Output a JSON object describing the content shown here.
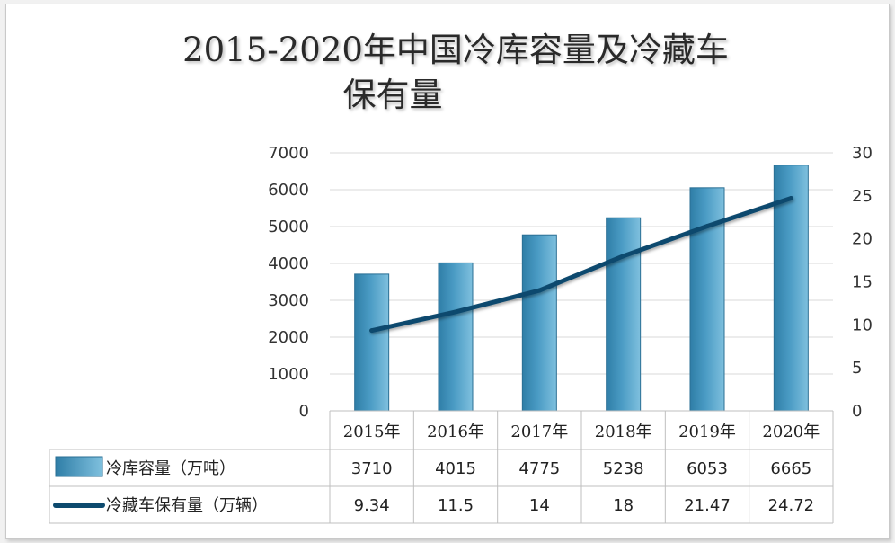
{
  "chart_data": {
    "type": "bar",
    "title": "2015-2020年中国冷库容量及冷藏车保有量",
    "title_lines": [
      "2015-2020年中国冷库容量及冷藏车",
      "保有量"
    ],
    "categories": [
      "2015年",
      "2016年",
      "2017年",
      "2018年",
      "2019年",
      "2020年"
    ],
    "series": [
      {
        "name": "冷库容量（万吨）",
        "kind": "bar",
        "axis": "left",
        "color": "#4a9bc4",
        "values": [
          3710,
          4015,
          4775,
          5238,
          6053,
          6665
        ],
        "labels": [
          "3710",
          "4015",
          "4775",
          "5238",
          "6053",
          "6665"
        ]
      },
      {
        "name": "冷藏车保有量（万辆）",
        "kind": "line",
        "axis": "right",
        "color": "#0d4a6e",
        "values": [
          9.34,
          11.5,
          14,
          18,
          21.47,
          24.72
        ],
        "labels": [
          "9.34",
          "11.5",
          "14",
          "18",
          "21.47",
          "24.72"
        ]
      }
    ],
    "y_left": {
      "lim": [
        0,
        7000
      ],
      "ticks": [
        "0",
        "1000",
        "2000",
        "3000",
        "4000",
        "5000",
        "6000",
        "7000"
      ]
    },
    "y_right": {
      "lim": [
        0,
        30
      ],
      "ticks": [
        "0",
        "5",
        "10",
        "15",
        "20",
        "25",
        "30"
      ]
    },
    "grid": true,
    "data_table": true
  }
}
